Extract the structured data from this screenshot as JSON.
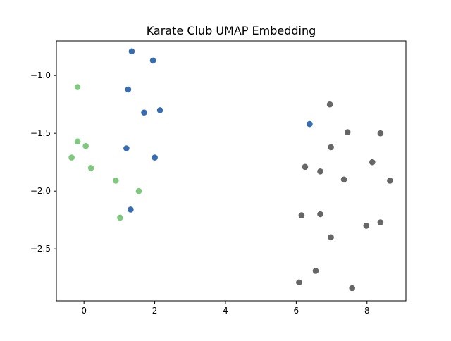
{
  "chart_data": {
    "type": "scatter",
    "title": "Karate Club UMAP Embedding",
    "xlabel": "",
    "ylabel": "",
    "xlim": [
      -0.78,
      9.1
    ],
    "ylim": [
      -2.95,
      -0.7
    ],
    "x_ticks": [
      0,
      2,
      4,
      6,
      8
    ],
    "y_ticks": [
      -1.0,
      -1.5,
      -2.0,
      -2.5
    ],
    "x_tick_labels": [
      "0",
      "2",
      "4",
      "6",
      "8"
    ],
    "y_tick_labels": [
      "−1.0",
      "−1.5",
      "−2.0",
      "−2.5"
    ],
    "grid": false,
    "legend": "none",
    "series": [
      {
        "color": "#7fc97f",
        "points": [
          [
            -0.18,
            -1.1
          ],
          [
            -0.18,
            -1.57
          ],
          [
            0.05,
            -1.61
          ],
          [
            -0.35,
            -1.71
          ],
          [
            0.2,
            -1.8
          ],
          [
            0.9,
            -1.91
          ],
          [
            1.55,
            -2.0
          ],
          [
            1.02,
            -2.23
          ]
        ]
      },
      {
        "color": "#386cb0",
        "points": [
          [
            1.35,
            -0.79
          ],
          [
            1.95,
            -0.87
          ],
          [
            1.25,
            -1.12
          ],
          [
            2.15,
            -1.3
          ],
          [
            1.7,
            -1.32
          ],
          [
            1.2,
            -1.63
          ],
          [
            2.0,
            -1.71
          ],
          [
            1.32,
            -2.16
          ],
          [
            6.38,
            -1.42
          ]
        ]
      },
      {
        "color": "#666666",
        "points": [
          [
            6.95,
            -1.25
          ],
          [
            7.45,
            -1.49
          ],
          [
            8.38,
            -1.5
          ],
          [
            6.98,
            -1.62
          ],
          [
            8.15,
            -1.75
          ],
          [
            6.25,
            -1.79
          ],
          [
            6.68,
            -1.83
          ],
          [
            7.35,
            -1.9
          ],
          [
            8.65,
            -1.91
          ],
          [
            6.15,
            -2.21
          ],
          [
            6.68,
            -2.2
          ],
          [
            8.38,
            -2.27
          ],
          [
            7.98,
            -2.3
          ],
          [
            6.98,
            -2.4
          ],
          [
            6.55,
            -2.69
          ],
          [
            6.08,
            -2.79
          ],
          [
            7.58,
            -2.84
          ]
        ]
      }
    ]
  }
}
